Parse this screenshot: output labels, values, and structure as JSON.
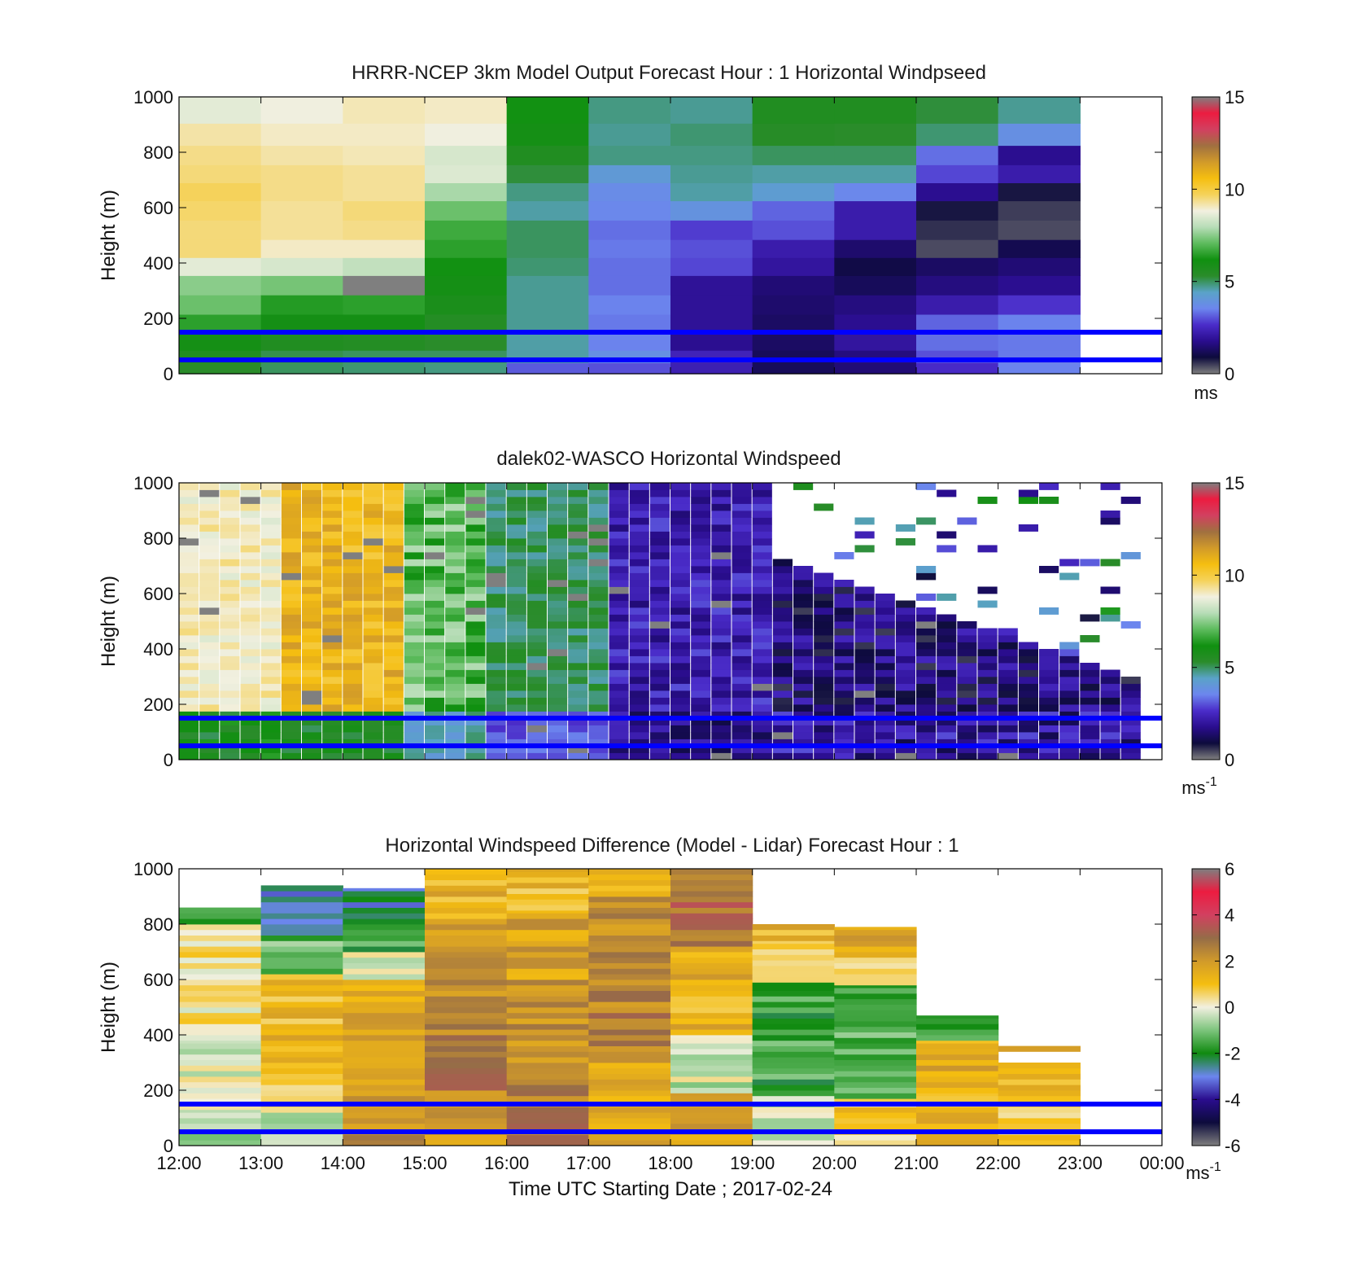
{
  "figure": {
    "xlabel": "Time UTC  Starting Date ; 2017-02-24",
    "time_ticks": [
      "12:00",
      "13:00",
      "14:00",
      "15:00",
      "16:00",
      "17:00",
      "18:00",
      "19:00",
      "20:00",
      "21:00",
      "22:00",
      "23:00",
      "00:00"
    ]
  },
  "colors": {
    "speed_colormap": [
      "#7f7f7f",
      "#0d0b3c",
      "#2a0d8e",
      "#4a2cc9",
      "#6c86ee",
      "#5aa3c8",
      "#2a8c2a",
      "#109010",
      "#5dbb5d",
      "#b7ddb7",
      "#f2f0e0",
      "#f5d25a",
      "#f5be10",
      "#d19a2a",
      "#a07040",
      "#d24060",
      "#ec1c40",
      "#7f7f7f"
    ],
    "diff_colormap": [
      "#7f7f7f",
      "#0d0b3c",
      "#2a0d8e",
      "#6c86ee",
      "#108a10",
      "#7cc47c",
      "#f2f0e0",
      "#f5be10",
      "#d19a2a",
      "#956c48",
      "#d24060",
      "#ec1c40",
      "#7f7f7f"
    ],
    "reference_line": "#0000ff"
  },
  "chart_data": [
    {
      "type": "heatmap",
      "title": "HRRR-NCEP 3km Model Output   Forecast Hour : 1 Horizontal Windpseed",
      "ylabel": "Height (m)",
      "xlim": [
        "12:00",
        "00:00"
      ],
      "ylim": [
        0,
        1000
      ],
      "yticks": [
        "0",
        "200",
        "400",
        "600",
        "800",
        "1000"
      ],
      "x": [
        "12:00",
        "13:00",
        "14:00",
        "15:00",
        "16:00",
        "17:00",
        "18:00",
        "19:00",
        "20:00",
        "21:00",
        "22:00"
      ],
      "y": [
        20,
        60,
        110,
        180,
        250,
        320,
        390,
        450,
        520,
        590,
        660,
        720,
        790,
        860,
        950
      ],
      "z_units": "ms",
      "z": [
        [
          5.3,
          5.0,
          4.9,
          4.8,
          3.1,
          3.0,
          2.3,
          1.2,
          1.5,
          2.6,
          3.5
        ],
        [
          5.6,
          5.1,
          5.0,
          5.0,
          4.6,
          3.8,
          2.4,
          1.2,
          1.6,
          3.0,
          3.4
        ],
        [
          6.0,
          5.6,
          5.5,
          5.3,
          4.6,
          3.5,
          1.8,
          1.3,
          2.0,
          3.3,
          3.4
        ],
        [
          6.5,
          6.0,
          6.0,
          5.5,
          4.7,
          3.4,
          1.9,
          1.3,
          1.8,
          3.2,
          3.5
        ],
        [
          7.2,
          6.4,
          6.5,
          5.8,
          4.7,
          3.5,
          1.9,
          1.4,
          1.6,
          2.2,
          2.7
        ],
        [
          7.5,
          7.3,
          0.0,
          6.0,
          4.7,
          3.3,
          1.9,
          1.5,
          1.2,
          1.6,
          1.8
        ],
        [
          8.6,
          8.4,
          8.1,
          6.2,
          4.9,
          3.3,
          2.9,
          2.0,
          1.0,
          1.3,
          1.5
        ],
        [
          9.5,
          9.0,
          9.0,
          6.5,
          5.0,
          3.4,
          3.0,
          2.2,
          1.4,
          0.4,
          1.1
        ],
        [
          9.5,
          9.3,
          9.4,
          6.7,
          5.0,
          3.3,
          2.8,
          3.0,
          2.2,
          0.6,
          0.4
        ],
        [
          9.6,
          9.3,
          9.5,
          7.2,
          4.6,
          3.6,
          3.9,
          3.2,
          2.2,
          0.8,
          0.5
        ],
        [
          9.7,
          9.4,
          9.3,
          7.8,
          4.8,
          3.7,
          4.6,
          4.2,
          3.6,
          1.8,
          0.8
        ],
        [
          9.5,
          9.4,
          9.3,
          8.5,
          5.2,
          4.1,
          4.7,
          4.6,
          4.6,
          2.9,
          2.2
        ],
        [
          9.4,
          9.2,
          9.1,
          8.4,
          5.6,
          4.8,
          4.8,
          5.0,
          5.0,
          3.3,
          1.8
        ],
        [
          9.2,
          9.0,
          9.0,
          8.8,
          6.0,
          4.7,
          4.9,
          5.4,
          5.3,
          4.9,
          3.8
        ],
        [
          8.6,
          8.8,
          9.1,
          9.0,
          6.2,
          4.8,
          4.7,
          5.6,
          5.6,
          5.2,
          4.7
        ]
      ],
      "colorbar": {
        "ticks": [
          "0",
          "5",
          "10",
          "15"
        ],
        "range": [
          0,
          15
        ],
        "units": "ms"
      },
      "reference_heights": [
        150,
        50
      ]
    },
    {
      "type": "heatmap",
      "title": "dalek02-WASCO  Horizontal Windspeed",
      "ylabel": "Height (m)",
      "xlim": [
        "12:00",
        "00:00"
      ],
      "ylim": [
        0,
        1000
      ],
      "yticks": [
        "0",
        "200",
        "400",
        "600",
        "800",
        "1000"
      ],
      "time_start": "12:00",
      "time_step_minutes": 15,
      "profile_count": 47,
      "bin_m": 25,
      "z_units": "ms-1",
      "regimes": [
        {
          "from": "12:00",
          "to": "13:00",
          "speed": [
            8.5,
            9.5
          ],
          "low_level_speed": [
            5.0,
            6.5
          ]
        },
        {
          "from": "13:00",
          "to": "14:30",
          "speed": [
            10.0,
            11.5
          ],
          "low_level_speed": [
            5.0,
            6.0
          ]
        },
        {
          "from": "14:30",
          "to": "15:30",
          "speed": [
            6.0,
            8.0
          ],
          "low_level_speed": [
            4.0,
            5.0
          ]
        },
        {
          "from": "15:30",
          "to": "17:00",
          "speed": [
            4.5,
            5.5
          ],
          "low_level_speed": [
            2.5,
            3.5
          ]
        },
        {
          "from": "17:00",
          "to": "19:00",
          "speed": [
            1.5,
            3.0
          ],
          "low_level_speed": [
            1.0,
            2.5
          ]
        },
        {
          "from": "19:00",
          "to": "23:45",
          "speed": [
            0.5,
            2.5
          ],
          "low_level_speed": [
            1.0,
            3.0
          ],
          "coverage_top": [
            750,
            250
          ]
        }
      ],
      "colorbar": {
        "ticks": [
          "0",
          "5",
          "10",
          "15"
        ],
        "range": [
          0,
          15
        ],
        "units": "ms",
        "units_exponent": "-1"
      },
      "reference_heights": [
        150,
        50
      ]
    },
    {
      "type": "heatmap",
      "title": "Horizontal Windspeed Difference (Model - Lidar) Forecast Hour : 1",
      "ylabel": "Height (m)",
      "xlim": [
        "12:00",
        "00:00"
      ],
      "ylim": [
        0,
        1000
      ],
      "yticks": [
        "0",
        "200",
        "400",
        "600",
        "800",
        "1000"
      ],
      "x": [
        "12:00",
        "13:00",
        "14:00",
        "15:00",
        "16:00",
        "17:00",
        "18:00",
        "19:00",
        "20:00",
        "21:00",
        "22:00"
      ],
      "z_units": "ms-1",
      "columns": [
        {
          "top": 860,
          "segments": [
            [
              0,
              130,
              -0.6
            ],
            [
              130,
              380,
              -0.2
            ],
            [
              380,
              800,
              0.4
            ],
            [
              800,
              860,
              -1.5
            ]
          ]
        },
        {
          "top": 940,
          "segments": [
            [
              0,
              120,
              -0.6
            ],
            [
              120,
              300,
              0.8
            ],
            [
              300,
              620,
              1.2
            ],
            [
              620,
              760,
              -1.2
            ],
            [
              760,
              940,
              -2.8
            ]
          ]
        },
        {
          "top": 930,
          "segments": [
            [
              0,
              200,
              2.2
            ],
            [
              200,
              600,
              1.6
            ],
            [
              600,
              700,
              -0.3
            ],
            [
              700,
              800,
              -1.6
            ],
            [
              800,
              930,
              -2.6
            ]
          ]
        },
        {
          "top": 1000,
          "segments": [
            [
              0,
              200,
              2.0
            ],
            [
              200,
              500,
              2.6
            ],
            [
              500,
              800,
              2.2
            ],
            [
              800,
              1000,
              1.4
            ]
          ]
        },
        {
          "top": 1000,
          "segments": [
            [
              0,
              300,
              2.6
            ],
            [
              300,
              600,
              2.2
            ],
            [
              600,
              850,
              1.7
            ],
            [
              850,
              1000,
              1.2
            ]
          ]
        },
        {
          "top": 1000,
          "segments": [
            [
              0,
              300,
              1.4
            ],
            [
              300,
              600,
              2.5
            ],
            [
              600,
              900,
              2.2
            ],
            [
              900,
              1000,
              1.6
            ]
          ]
        },
        {
          "top": 1000,
          "segments": [
            [
              0,
              190,
              1.6
            ],
            [
              190,
              400,
              -0.3
            ],
            [
              400,
              720,
              1.4
            ],
            [
              720,
              1000,
              3.0
            ]
          ]
        },
        {
          "top": 800,
          "segments": [
            [
              0,
              180,
              -0.4
            ],
            [
              180,
              590,
              -1.6
            ],
            [
              590,
              740,
              1.0
            ],
            [
              740,
              800,
              1.4
            ]
          ]
        },
        {
          "top": 790,
          "segments": [
            [
              0,
              170,
              0.8
            ],
            [
              170,
              580,
              -1.4
            ],
            [
              580,
              700,
              0.9
            ],
            [
              700,
              790,
              1.5
            ]
          ]
        },
        {
          "top": 470,
          "segments": [
            [
              0,
              190,
              1.2
            ],
            [
              190,
              380,
              1.5
            ],
            [
              380,
              470,
              -1.6
            ]
          ]
        },
        {
          "top": 360,
          "segments": [
            [
              0,
              160,
              0.8
            ],
            [
              160,
              300,
              1.4
            ],
            [
              340,
              360,
              1.2
            ]
          ]
        }
      ],
      "colorbar": {
        "ticks": [
          "-6",
          "-4",
          "-2",
          "0",
          "2",
          "4",
          "6"
        ],
        "range": [
          -6,
          6
        ],
        "units": "ms",
        "units_exponent": "-1"
      },
      "reference_heights": [
        150,
        50
      ]
    }
  ]
}
